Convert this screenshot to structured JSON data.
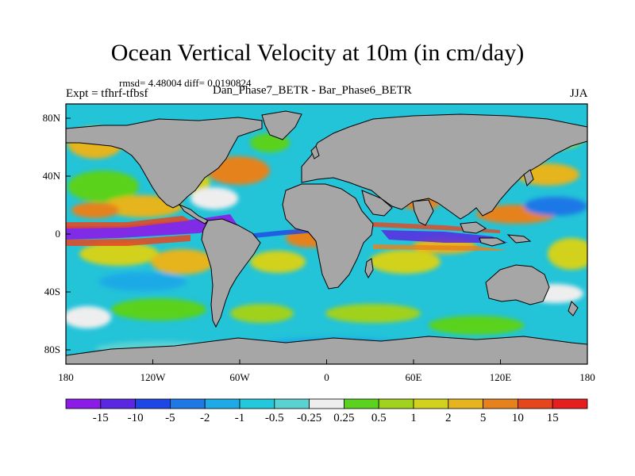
{
  "title": "Ocean Vertical Velocity at 10m (in cm/day)",
  "stats": "rmsd= 4.48004 diff= 0.0190824",
  "experiment": "Expt = tfhrf-tfbsf",
  "case_label": "Dan_Phase7_BETR - Bar_Phase6_BETR",
  "season": "JJA",
  "map": {
    "projection": "cylindrical equidistant",
    "lon_range": [
      -180,
      180
    ],
    "lat_range": [
      -90,
      90
    ],
    "lat_ticks": [
      "80N",
      "40N",
      "0",
      "40S",
      "80S"
    ],
    "lon_ticks": [
      "180",
      "120W",
      "60W",
      "0",
      "60E",
      "120E",
      "180"
    ],
    "land_color": "#a6a6a6"
  },
  "colorbar": {
    "labels": [
      "-15",
      "-10",
      "-5",
      "-2",
      "-1",
      "-0.5",
      "-0.25",
      "0.25",
      "0.5",
      "1",
      "2",
      "5",
      "10",
      "15"
    ],
    "colors": [
      "#8b1ce8",
      "#5a28e0",
      "#1e46e6",
      "#1e78e6",
      "#1eaae6",
      "#22c8dc",
      "#5ad2d2",
      "#eeeeee",
      "#5ad21e",
      "#a0d21e",
      "#d2d21e",
      "#e6b41e",
      "#e6821e",
      "#e6461e",
      "#e61e1e"
    ]
  }
}
